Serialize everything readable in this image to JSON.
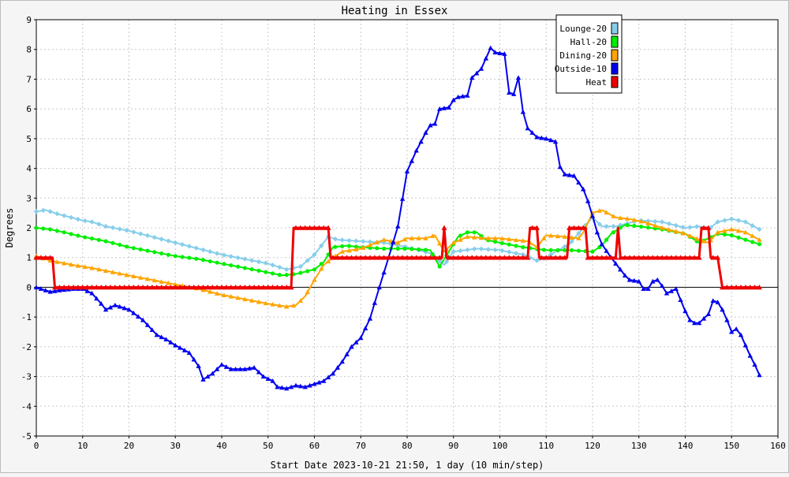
{
  "chart_data": {
    "type": "line",
    "title": "Heating in Essex",
    "xlabel": "Start Date 2023-10-21 21:50, 1 day (10 min/step)",
    "ylabel": "Degrees",
    "xlim": [
      0,
      160
    ],
    "ylim": [
      -5,
      9
    ],
    "x_ticks": [
      0,
      10,
      20,
      30,
      40,
      50,
      60,
      70,
      80,
      90,
      100,
      110,
      120,
      130,
      140,
      150,
      160
    ],
    "y_ticks": [
      -5,
      -4,
      -3,
      -2,
      -1,
      0,
      1,
      2,
      3,
      4,
      5,
      6,
      7,
      8,
      9
    ],
    "grid": true,
    "legend_position": "top-right",
    "series": [
      {
        "name": "Lounge-20",
        "color": "#87ceeb",
        "marker": "diamond",
        "points": [
          [
            0,
            2.55
          ],
          [
            2,
            2.6
          ],
          [
            5,
            2.45
          ],
          [
            10,
            2.25
          ],
          [
            12,
            2.2
          ],
          [
            15,
            2.05
          ],
          [
            20,
            1.9
          ],
          [
            25,
            1.7
          ],
          [
            30,
            1.5
          ],
          [
            35,
            1.3
          ],
          [
            40,
            1.1
          ],
          [
            45,
            0.95
          ],
          [
            50,
            0.8
          ],
          [
            54,
            0.6
          ],
          [
            57,
            0.7
          ],
          [
            60,
            1.1
          ],
          [
            63,
            1.7
          ],
          [
            65,
            1.6
          ],
          [
            70,
            1.55
          ],
          [
            75,
            1.5
          ],
          [
            80,
            1.35
          ],
          [
            85,
            1.15
          ],
          [
            88,
            0.75
          ],
          [
            90,
            1.2
          ],
          [
            95,
            1.3
          ],
          [
            100,
            1.25
          ],
          [
            105,
            1.1
          ],
          [
            108,
            0.9
          ],
          [
            110,
            1.0
          ],
          [
            112,
            1.2
          ],
          [
            115,
            1.45
          ],
          [
            118,
            2.0
          ],
          [
            120,
            2.35
          ],
          [
            122,
            2.05
          ],
          [
            125,
            2.05
          ],
          [
            130,
            2.25
          ],
          [
            135,
            2.2
          ],
          [
            140,
            2.0
          ],
          [
            143,
            2.05
          ],
          [
            145,
            1.95
          ],
          [
            147,
            2.2
          ],
          [
            150,
            2.3
          ],
          [
            153,
            2.2
          ],
          [
            156,
            1.95
          ]
        ]
      },
      {
        "name": "Hall-20",
        "color": "#00ee00",
        "marker": "circle",
        "points": [
          [
            0,
            2.0
          ],
          [
            3,
            1.95
          ],
          [
            6,
            1.85
          ],
          [
            10,
            1.7
          ],
          [
            15,
            1.55
          ],
          [
            20,
            1.35
          ],
          [
            25,
            1.2
          ],
          [
            30,
            1.05
          ],
          [
            35,
            0.95
          ],
          [
            40,
            0.8
          ],
          [
            45,
            0.65
          ],
          [
            50,
            0.5
          ],
          [
            53,
            0.4
          ],
          [
            56,
            0.45
          ],
          [
            60,
            0.6
          ],
          [
            62,
            0.85
          ],
          [
            64,
            1.35
          ],
          [
            67,
            1.4
          ],
          [
            70,
            1.35
          ],
          [
            75,
            1.3
          ],
          [
            80,
            1.3
          ],
          [
            85,
            1.25
          ],
          [
            87,
            0.7
          ],
          [
            89,
            1.2
          ],
          [
            91,
            1.7
          ],
          [
            93,
            1.85
          ],
          [
            95,
            1.85
          ],
          [
            97,
            1.6
          ],
          [
            100,
            1.5
          ],
          [
            105,
            1.35
          ],
          [
            110,
            1.25
          ],
          [
            115,
            1.25
          ],
          [
            120,
            1.2
          ],
          [
            122,
            1.4
          ],
          [
            124,
            1.8
          ],
          [
            127,
            2.1
          ],
          [
            130,
            2.05
          ],
          [
            135,
            1.95
          ],
          [
            140,
            1.8
          ],
          [
            143,
            1.5
          ],
          [
            147,
            1.8
          ],
          [
            150,
            1.75
          ],
          [
            156,
            1.45
          ]
        ]
      },
      {
        "name": "Dining-20",
        "color": "#ffa500",
        "marker": "triangle",
        "points": [
          [
            0,
            1.05
          ],
          [
            3,
            0.9
          ],
          [
            8,
            0.75
          ],
          [
            12,
            0.65
          ],
          [
            20,
            0.4
          ],
          [
            25,
            0.25
          ],
          [
            30,
            0.1
          ],
          [
            35,
            -0.05
          ],
          [
            40,
            -0.25
          ],
          [
            45,
            -0.4
          ],
          [
            50,
            -0.55
          ],
          [
            54,
            -0.65
          ],
          [
            56,
            -0.6
          ],
          [
            58,
            -0.3
          ],
          [
            60,
            0.25
          ],
          [
            62,
            0.75
          ],
          [
            64,
            1.0
          ],
          [
            66,
            1.2
          ],
          [
            70,
            1.3
          ],
          [
            75,
            1.6
          ],
          [
            78,
            1.5
          ],
          [
            80,
            1.65
          ],
          [
            84,
            1.65
          ],
          [
            86,
            1.75
          ],
          [
            88,
            1.2
          ],
          [
            90,
            1.5
          ],
          [
            93,
            1.7
          ],
          [
            97,
            1.65
          ],
          [
            100,
            1.65
          ],
          [
            103,
            1.6
          ],
          [
            106,
            1.55
          ],
          [
            108,
            1.35
          ],
          [
            110,
            1.75
          ],
          [
            114,
            1.7
          ],
          [
            117,
            1.65
          ],
          [
            118,
            1.85
          ],
          [
            120,
            2.5
          ],
          [
            122,
            2.6
          ],
          [
            125,
            2.35
          ],
          [
            128,
            2.3
          ],
          [
            131,
            2.2
          ],
          [
            135,
            2.0
          ],
          [
            140,
            1.8
          ],
          [
            143,
            1.6
          ],
          [
            145,
            1.5
          ],
          [
            147,
            1.85
          ],
          [
            150,
            1.95
          ],
          [
            153,
            1.85
          ],
          [
            156,
            1.6
          ]
        ]
      },
      {
        "name": "Outside-10",
        "color": "#0000ee",
        "marker": "triangle",
        "points": [
          [
            0,
            0.0
          ],
          [
            3,
            -0.15
          ],
          [
            5,
            -0.1
          ],
          [
            8,
            -0.05
          ],
          [
            10,
            -0.05
          ],
          [
            12,
            -0.2
          ],
          [
            14,
            -0.55
          ],
          [
            15,
            -0.75
          ],
          [
            17,
            -0.6
          ],
          [
            20,
            -0.75
          ],
          [
            23,
            -1.1
          ],
          [
            26,
            -1.6
          ],
          [
            28,
            -1.75
          ],
          [
            30,
            -1.95
          ],
          [
            33,
            -2.2
          ],
          [
            35,
            -2.65
          ],
          [
            36,
            -3.1
          ],
          [
            38,
            -2.9
          ],
          [
            40,
            -2.6
          ],
          [
            42,
            -2.75
          ],
          [
            45,
            -2.75
          ],
          [
            47,
            -2.7
          ],
          [
            49,
            -3.0
          ],
          [
            51,
            -3.15
          ],
          [
            52,
            -3.35
          ],
          [
            54,
            -3.4
          ],
          [
            56,
            -3.3
          ],
          [
            58,
            -3.35
          ],
          [
            60,
            -3.25
          ],
          [
            62,
            -3.15
          ],
          [
            64,
            -2.9
          ],
          [
            66,
            -2.5
          ],
          [
            68,
            -2.0
          ],
          [
            70,
            -1.7
          ],
          [
            72,
            -1.05
          ],
          [
            74,
            0.0
          ],
          [
            76,
            1.0
          ],
          [
            78,
            2.05
          ],
          [
            80,
            3.9
          ],
          [
            82,
            4.6
          ],
          [
            84,
            5.2
          ],
          [
            85,
            5.45
          ],
          [
            86,
            5.5
          ],
          [
            87,
            6.0
          ],
          [
            89,
            6.05
          ],
          [
            90,
            6.3
          ],
          [
            91,
            6.4
          ],
          [
            93,
            6.45
          ],
          [
            94,
            7.05
          ],
          [
            96,
            7.35
          ],
          [
            98,
            8.05
          ],
          [
            99,
            7.9
          ],
          [
            101,
            7.85
          ],
          [
            102,
            6.55
          ],
          [
            103,
            6.5
          ],
          [
            104,
            7.05
          ],
          [
            105,
            5.9
          ],
          [
            106,
            5.35
          ],
          [
            108,
            5.05
          ],
          [
            110,
            5.0
          ],
          [
            111,
            4.95
          ],
          [
            112,
            4.9
          ],
          [
            113,
            4.05
          ],
          [
            114,
            3.8
          ],
          [
            116,
            3.75
          ],
          [
            118,
            3.3
          ],
          [
            119,
            2.9
          ],
          [
            120,
            2.4
          ],
          [
            121,
            1.85
          ],
          [
            122,
            1.45
          ],
          [
            124,
            1.0
          ],
          [
            125,
            0.8
          ],
          [
            127,
            0.4
          ],
          [
            128,
            0.25
          ],
          [
            130,
            0.2
          ],
          [
            131,
            -0.05
          ],
          [
            132,
            -0.05
          ],
          [
            133,
            0.2
          ],
          [
            134,
            0.25
          ],
          [
            135,
            0.05
          ],
          [
            136,
            -0.2
          ],
          [
            138,
            -0.05
          ],
          [
            140,
            -0.8
          ],
          [
            141,
            -1.1
          ],
          [
            142,
            -1.2
          ],
          [
            143,
            -1.2
          ],
          [
            145,
            -0.9
          ],
          [
            146,
            -0.45
          ],
          [
            147,
            -0.5
          ],
          [
            148,
            -0.75
          ],
          [
            149,
            -1.1
          ],
          [
            150,
            -1.5
          ],
          [
            151,
            -1.4
          ],
          [
            152,
            -1.6
          ],
          [
            154,
            -2.3
          ],
          [
            155,
            -2.6
          ],
          [
            156,
            -2.95
          ]
        ]
      },
      {
        "name": "Heat",
        "color": "#ee0000",
        "marker": "triangle",
        "points": [
          [
            0,
            1
          ],
          [
            3.5,
            1
          ],
          [
            4,
            0
          ],
          [
            55,
            0
          ],
          [
            55.5,
            2
          ],
          [
            63,
            2
          ],
          [
            63.5,
            1
          ],
          [
            87.5,
            1
          ],
          [
            88,
            2
          ],
          [
            88.5,
            1
          ],
          [
            106,
            1
          ],
          [
            106.5,
            2
          ],
          [
            108,
            2
          ],
          [
            108.5,
            1
          ],
          [
            114.5,
            1
          ],
          [
            115,
            2
          ],
          [
            118.5,
            2
          ],
          [
            119,
            1
          ],
          [
            125,
            1
          ],
          [
            125.5,
            2
          ],
          [
            126,
            1
          ],
          [
            143,
            1
          ],
          [
            143.5,
            2
          ],
          [
            145,
            2
          ],
          [
            145.5,
            1
          ],
          [
            147,
            1
          ],
          [
            148,
            0
          ],
          [
            156,
            0
          ]
        ]
      }
    ]
  }
}
